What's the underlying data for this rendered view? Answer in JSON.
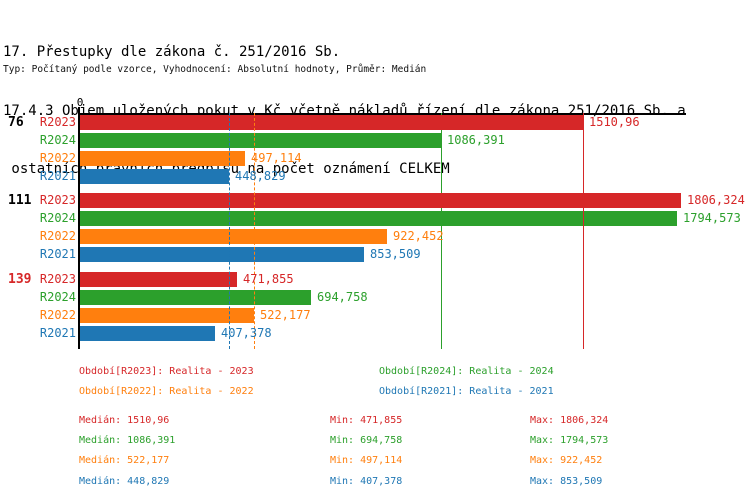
{
  "header": {
    "line1": "17. Přestupky dle zákona č. 251/2016 Sb.",
    "line2": "17.4.3 Objem uložených pokut v Kč včetně nákladů řízení dle zákona 251/2016 Sb. a",
    "line3": " ostatních právních předpisů na počet oznámení CELKEM",
    "subtitle": "Typ: Počítaný podle vzorce, Vyhodnocení: Absolutní hodnoty, Průměr: Medián"
  },
  "chart_data": {
    "type": "bar",
    "orientation": "horizontal",
    "title": "17.4.3 Objem uložených pokut v Kč včetně nákladů řízení dle zákona 251/2016 Sb. a ostatních právních předpisů na počet oznámení CELKEM",
    "x_axis": {
      "xlim": [
        0,
        1822
      ],
      "origin_label": "0",
      "gridlines": false
    },
    "groups": [
      "76",
      "111",
      "139"
    ],
    "group_label_colors": [
      "#000000",
      "#000000",
      "#d62728"
    ],
    "series": [
      {
        "name": "R2023",
        "color": "#d62728",
        "legend_label": "Období[R2023]: Realita - 2023",
        "values": [
          1510.96,
          1806.324,
          471.855
        ],
        "displays": [
          "1510,96",
          "1806,324",
          "471,855"
        ],
        "median": 1510.96,
        "median_display": "1510,96",
        "min_display": "471,855",
        "max_display": "1806,324",
        "line_style": "solid",
        "line_layer": "above"
      },
      {
        "name": "R2024",
        "color": "#2ca02c",
        "legend_label": "Období[R2024]: Realita - 2024",
        "values": [
          1086.391,
          1794.573,
          694.758
        ],
        "displays": [
          "1086,391",
          "1794,573",
          "694,758"
        ],
        "median": 1086.391,
        "median_display": "1086,391",
        "min_display": "694,758",
        "max_display": "1794,573",
        "line_style": "solid",
        "line_layer": "below"
      },
      {
        "name": "R2022",
        "color": "#ff7f0e",
        "legend_label": "Období[R2022]: Realita - 2022",
        "values": [
          497.114,
          922.452,
          522.177
        ],
        "displays": [
          "497,114",
          "922,452",
          "522,177"
        ],
        "median": 522.177,
        "median_display": "522,177",
        "min_display": "497,114",
        "max_display": "922,452",
        "line_style": "dashed",
        "line_layer": "above"
      },
      {
        "name": "R2021",
        "color": "#1f77b4",
        "legend_label": "Období[R2021]: Realita - 2021",
        "values": [
          448.829,
          853.509,
          407.378
        ],
        "displays": [
          "448,829",
          "853,509",
          "407,378"
        ],
        "median": 448.829,
        "median_display": "448,829",
        "min_display": "407,378",
        "max_display": "853,509",
        "line_style": "dashed",
        "line_layer": "above"
      }
    ]
  },
  "stats": {
    "median_label": "Medián",
    "min_label": "Min",
    "max_label": "Max"
  }
}
